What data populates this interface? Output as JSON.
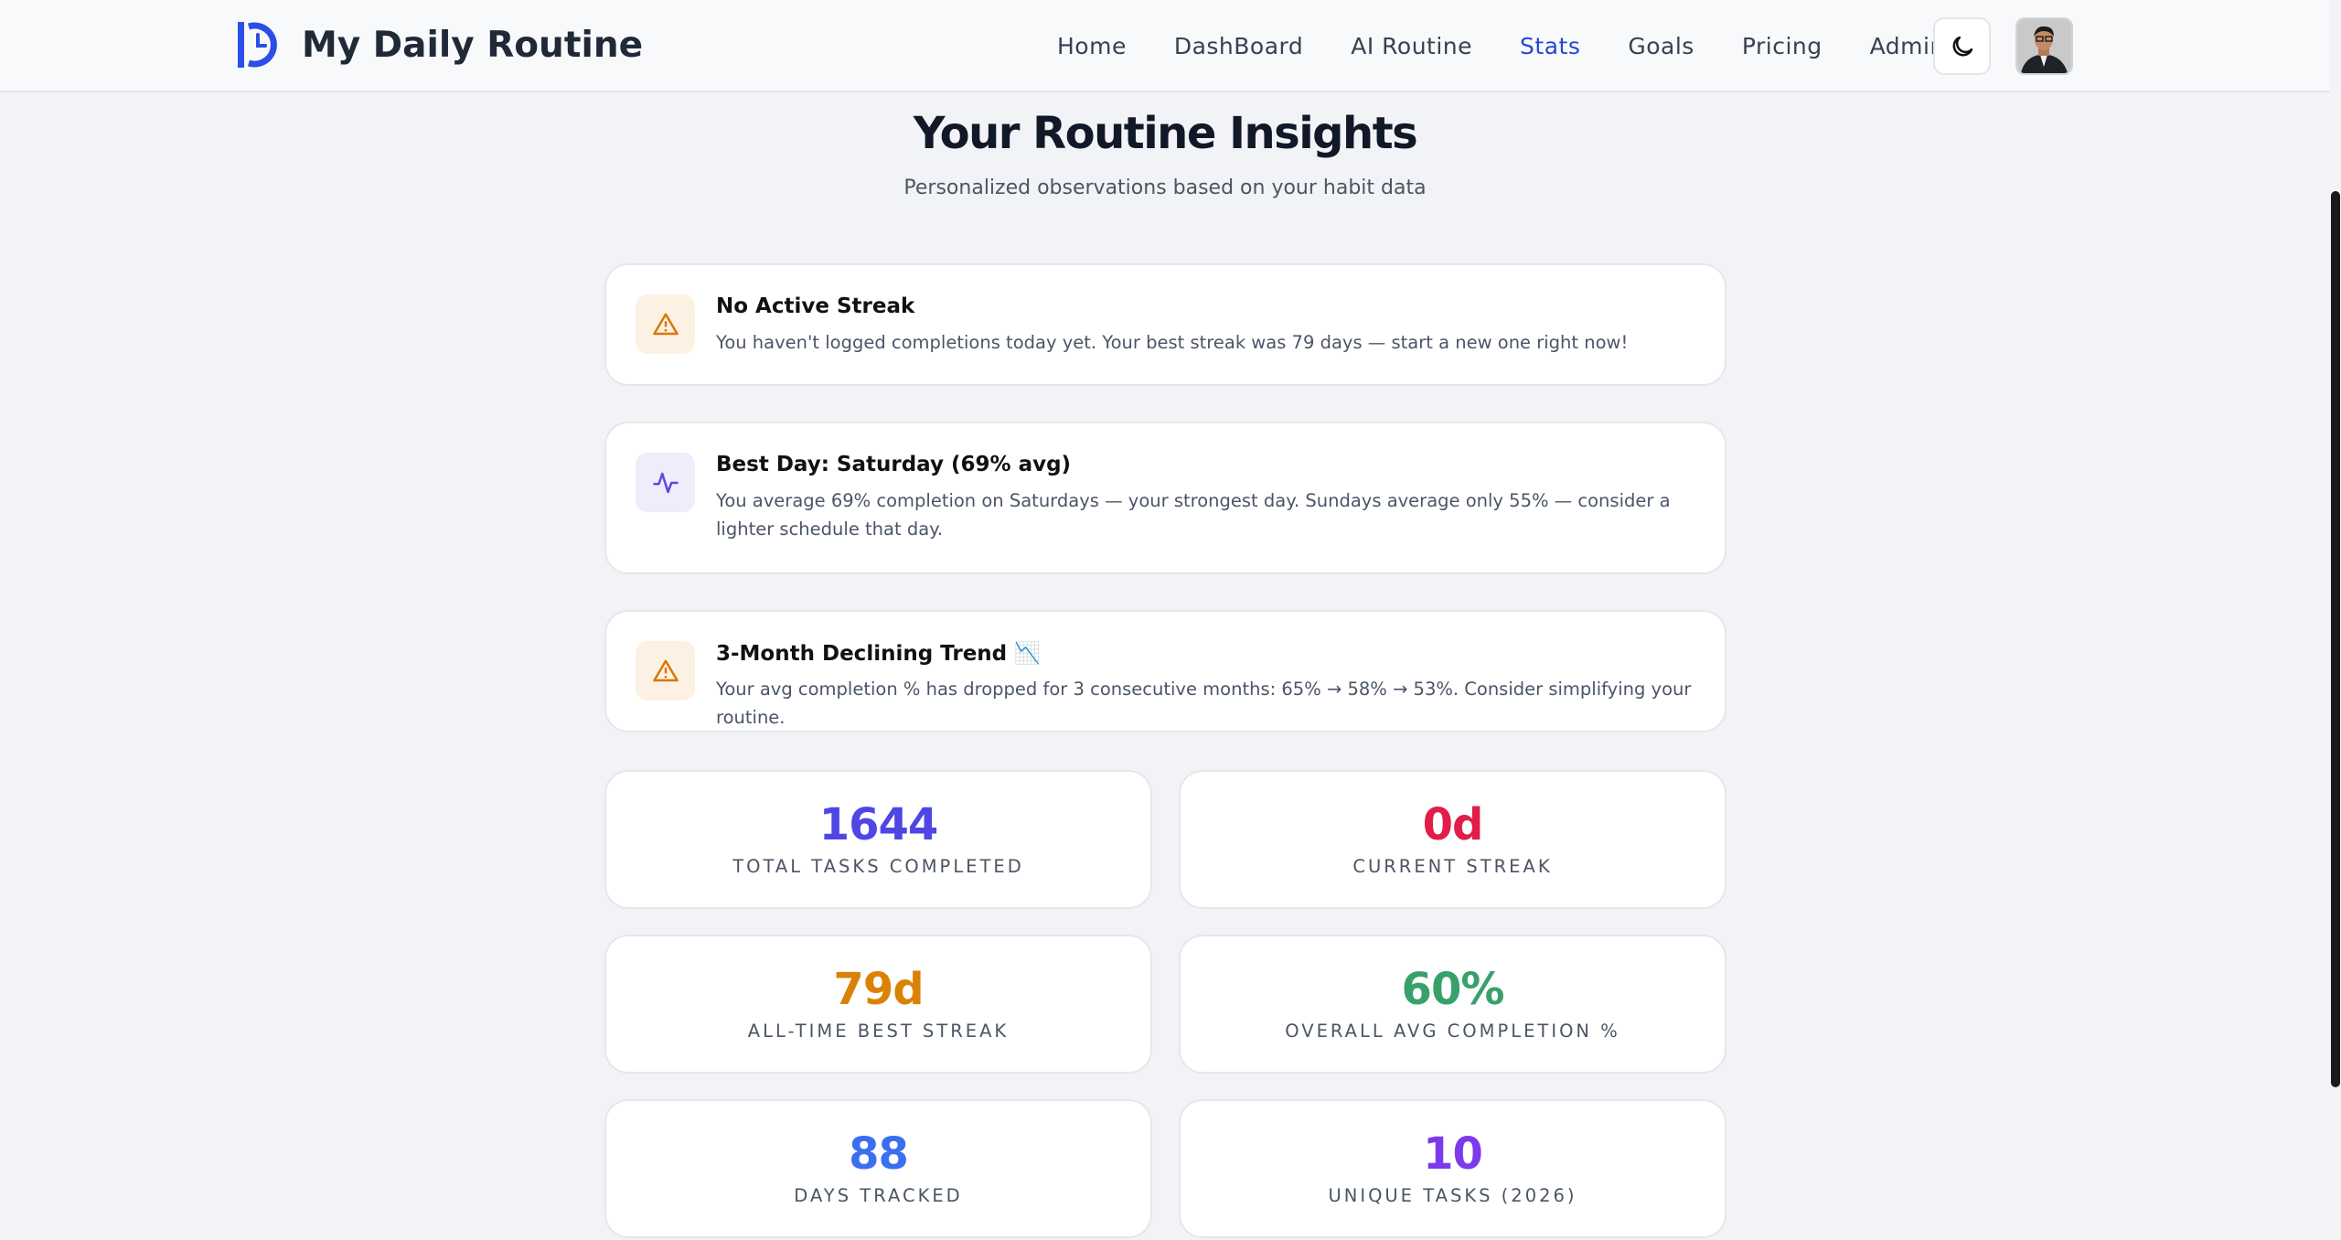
{
  "header": {
    "brand": "My Daily Routine",
    "nav": [
      "Home",
      "DashBoard",
      "AI Routine",
      "Stats",
      "Goals",
      "Pricing",
      "Admin"
    ]
  },
  "page": {
    "title": "Your Routine Insights",
    "subtitle": "Personalized observations based on your habit data"
  },
  "insights": [
    {
      "title": "No Active Streak",
      "text": "You haven't logged completions today yet. Your best streak was 79 days — start a new one right now!"
    },
    {
      "title": "Best Day: Saturday (69% avg)",
      "text": "You average 69% completion on Saturdays — your strongest day. Sundays average only 55% — consider a lighter schedule that day."
    },
    {
      "title": "3-Month Declining Trend 📉",
      "text": "Your avg completion % has dropped for 3 consecutive months: 65% → 58% → 53%. Consider simplifying your routine."
    }
  ],
  "stats": [
    {
      "value": "1644",
      "label": "TOTAL TASKS COMPLETED"
    },
    {
      "value": "0d",
      "label": "CURRENT STREAK"
    },
    {
      "value": "79d",
      "label": "ALL-TIME BEST STREAK"
    },
    {
      "value": "60%",
      "label": "OVERALL AVG COMPLETION %"
    },
    {
      "value": "88",
      "label": "DAYS TRACKED"
    },
    {
      "value": "10",
      "label": "UNIQUE TASKS (2026)"
    }
  ]
}
